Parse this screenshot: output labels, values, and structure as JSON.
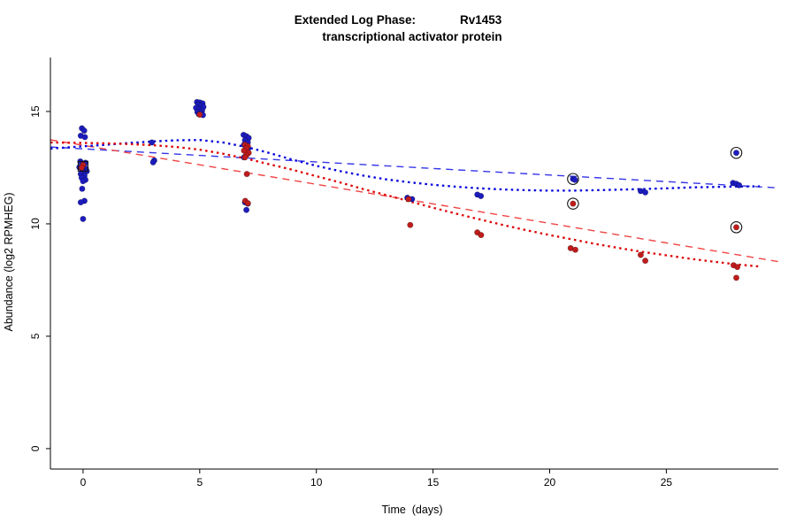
{
  "figure": {
    "background": "#ffffff"
  },
  "chart_data": {
    "type": "scatter",
    "title": "Extended Log Phase:     Rv1453",
    "title_left": "Extended Log Phase:",
    "title_right": "Rv1453",
    "subtitle": "transcriptional activator protein",
    "xlabel": "Time  (days)",
    "ylabel": "Abundance (log2 RPMHEG)",
    "xlim": [
      -1.4,
      29.8
    ],
    "ylim": [
      -0.91,
      17.48
    ],
    "xticks": [
      0,
      5,
      10,
      15,
      20,
      25
    ],
    "yticks": [
      0,
      5,
      10,
      15
    ],
    "grid": false,
    "legend": "none",
    "colors": {
      "blue_points": "#1c1cc0",
      "red_points": "#c01c1c",
      "blue_trend": "#3535e8",
      "red_trend": "#f04545",
      "blue_smooth": "#0000dd",
      "red_smooth": "#dd0000",
      "outlier_marker": "#111111"
    },
    "series": [
      {
        "name": "blue",
        "color": "#1c1cc0",
        "points": [
          [
            -0.05,
            14.25
          ],
          [
            0.05,
            14.15
          ],
          [
            -0.1,
            13.92
          ],
          [
            0.08,
            13.86
          ],
          [
            -0.12,
            12.78
          ],
          [
            0.1,
            12.72
          ],
          [
            0,
            12.62
          ],
          [
            -0.16,
            12.52
          ],
          [
            0.12,
            12.46
          ],
          [
            -0.04,
            12.4
          ],
          [
            0.16,
            12.34
          ],
          [
            0,
            12.3
          ],
          [
            -0.1,
            12.22
          ],
          [
            0.06,
            12.14
          ],
          [
            -0.06,
            12.05
          ],
          [
            0.1,
            11.96
          ],
          [
            0,
            11.9
          ],
          [
            -0.04,
            11.56
          ],
          [
            0.06,
            11.02
          ],
          [
            -0.1,
            10.96
          ],
          [
            0,
            10.22
          ],
          [
            2.95,
            13.62
          ],
          [
            3.05,
            12.82
          ],
          [
            3.0,
            12.74
          ],
          [
            4.88,
            15.42
          ],
          [
            5.0,
            15.4
          ],
          [
            5.12,
            15.36
          ],
          [
            4.94,
            15.3
          ],
          [
            5.06,
            15.26
          ],
          [
            5.16,
            15.2
          ],
          [
            4.84,
            15.16
          ],
          [
            5.0,
            15.1
          ],
          [
            5.1,
            15.04
          ],
          [
            4.9,
            14.98
          ],
          [
            5.04,
            14.94
          ],
          [
            4.96,
            14.88
          ],
          [
            5.14,
            14.84
          ],
          [
            6.88,
            13.96
          ],
          [
            7.0,
            13.9
          ],
          [
            7.1,
            13.82
          ],
          [
            6.94,
            13.72
          ],
          [
            7.06,
            13.62
          ],
          [
            6.9,
            13.52
          ],
          [
            7.0,
            13.46
          ],
          [
            7.08,
            13.36
          ],
          [
            6.94,
            13.26
          ],
          [
            7.04,
            13.16
          ],
          [
            7.0,
            13.06
          ],
          [
            6.9,
            12.96
          ],
          [
            6.94,
            10.96
          ],
          [
            7.06,
            10.9
          ],
          [
            7.0,
            10.62
          ],
          [
            13.9,
            11.16
          ],
          [
            14.1,
            11.1
          ],
          [
            16.9,
            11.3
          ],
          [
            17.05,
            11.24
          ],
          [
            21.0,
            12.0
          ],
          [
            21.08,
            11.96
          ],
          [
            23.9,
            11.46
          ],
          [
            24.1,
            11.4
          ],
          [
            27.86,
            11.82
          ],
          [
            28.0,
            11.78
          ],
          [
            28.12,
            11.72
          ],
          [
            28.0,
            13.16
          ]
        ]
      },
      {
        "name": "red",
        "color": "#c01c1c",
        "points": [
          [
            0.0,
            12.62
          ],
          [
            -0.06,
            12.5
          ],
          [
            5.0,
            14.86
          ],
          [
            6.94,
            13.52
          ],
          [
            7.06,
            13.46
          ],
          [
            7.0,
            13.36
          ],
          [
            6.9,
            13.26
          ],
          [
            7.1,
            13.16
          ],
          [
            7.0,
            13.06
          ],
          [
            6.94,
            12.96
          ],
          [
            7.02,
            12.22
          ],
          [
            6.95,
            11.02
          ],
          [
            7.06,
            10.92
          ],
          [
            13.95,
            11.1
          ],
          [
            14.02,
            9.95
          ],
          [
            16.9,
            9.62
          ],
          [
            17.06,
            9.5
          ],
          [
            21.0,
            10.9
          ],
          [
            20.9,
            8.92
          ],
          [
            21.1,
            8.85
          ],
          [
            23.9,
            8.62
          ],
          [
            24.1,
            8.36
          ],
          [
            28.0,
            9.85
          ],
          [
            27.88,
            8.16
          ],
          [
            28.04,
            8.08
          ],
          [
            28.0,
            7.6
          ]
        ]
      }
    ],
    "trend_lines": [
      {
        "name": "blue-linear-fit",
        "color": "#3535e8",
        "style": "dashed",
        "points": [
          [
            -1.4,
            13.42
          ],
          [
            29.8,
            11.6
          ]
        ]
      },
      {
        "name": "red-linear-fit",
        "color": "#f04545",
        "style": "dashed",
        "points": [
          [
            -1.4,
            13.74
          ],
          [
            29.8,
            8.32
          ]
        ]
      }
    ],
    "smooth_curves": [
      {
        "name": "blue-loess-fit",
        "color": "#0000dd",
        "style": "dotted",
        "points": [
          [
            -1.4,
            13.35
          ],
          [
            0,
            13.45
          ],
          [
            1,
            13.52
          ],
          [
            2,
            13.6
          ],
          [
            3,
            13.67
          ],
          [
            4,
            13.72
          ],
          [
            5,
            13.73
          ],
          [
            6,
            13.62
          ],
          [
            7,
            13.42
          ],
          [
            8,
            13.15
          ],
          [
            9,
            12.85
          ],
          [
            10,
            12.58
          ],
          [
            11,
            12.35
          ],
          [
            12,
            12.15
          ],
          [
            13,
            11.98
          ],
          [
            14,
            11.85
          ],
          [
            15,
            11.74
          ],
          [
            16,
            11.65
          ],
          [
            17,
            11.58
          ],
          [
            18,
            11.53
          ],
          [
            19,
            11.5
          ],
          [
            20,
            11.48
          ],
          [
            21,
            11.48
          ],
          [
            22,
            11.5
          ],
          [
            23,
            11.52
          ],
          [
            24,
            11.55
          ],
          [
            25,
            11.58
          ],
          [
            26,
            11.62
          ],
          [
            27,
            11.64
          ],
          [
            28,
            11.66
          ],
          [
            29,
            11.67
          ]
        ]
      },
      {
        "name": "red-loess-fit",
        "color": "#dd0000",
        "style": "dotted",
        "points": [
          [
            -1.4,
            13.62
          ],
          [
            0,
            13.6
          ],
          [
            1,
            13.58
          ],
          [
            2,
            13.55
          ],
          [
            3,
            13.5
          ],
          [
            4,
            13.42
          ],
          [
            5,
            13.3
          ],
          [
            6,
            13.12
          ],
          [
            7,
            12.9
          ],
          [
            8,
            12.65
          ],
          [
            9,
            12.4
          ],
          [
            10,
            12.12
          ],
          [
            11,
            11.85
          ],
          [
            12,
            11.55
          ],
          [
            13,
            11.28
          ],
          [
            14,
            11.0
          ],
          [
            15,
            10.72
          ],
          [
            16,
            10.45
          ],
          [
            17,
            10.2
          ],
          [
            18,
            9.95
          ],
          [
            19,
            9.72
          ],
          [
            20,
            9.5
          ],
          [
            21,
            9.3
          ],
          [
            22,
            9.1
          ],
          [
            23,
            8.92
          ],
          [
            24,
            8.75
          ],
          [
            25,
            8.6
          ],
          [
            26,
            8.45
          ],
          [
            27,
            8.32
          ],
          [
            28,
            8.2
          ],
          [
            29,
            8.1
          ]
        ]
      }
    ],
    "outliers": [
      {
        "x": 0,
        "y": 12.56,
        "shape": "square"
      },
      {
        "x": 21,
        "y": 12.0,
        "shape": "circle"
      },
      {
        "x": 21,
        "y": 10.9,
        "shape": "circle"
      },
      {
        "x": 28,
        "y": 13.16,
        "shape": "circle"
      },
      {
        "x": 28,
        "y": 9.85,
        "shape": "circle"
      }
    ]
  }
}
